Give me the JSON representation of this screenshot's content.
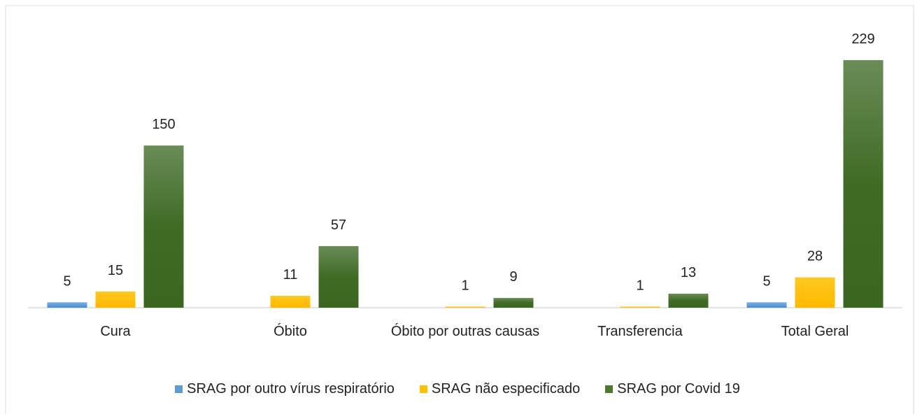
{
  "chart_data": {
    "type": "bar",
    "categories": [
      "Cura",
      "Óbito",
      "Óbito por outras causas",
      "Transferencia",
      "Total Geral"
    ],
    "series": [
      {
        "name": "SRAG por outro vírus respiratório",
        "color": "#5b9bd5",
        "values": [
          5,
          null,
          null,
          null,
          5
        ]
      },
      {
        "name": "SRAG não especificado",
        "color": "#ffc000",
        "values": [
          15,
          11,
          1,
          1,
          28
        ]
      },
      {
        "name": "SRAG por Covid 19",
        "color": "#4a7a2e",
        "values": [
          150,
          57,
          9,
          13,
          229
        ]
      }
    ],
    "ylim": [
      0,
      250
    ],
    "legend": "bottom"
  }
}
